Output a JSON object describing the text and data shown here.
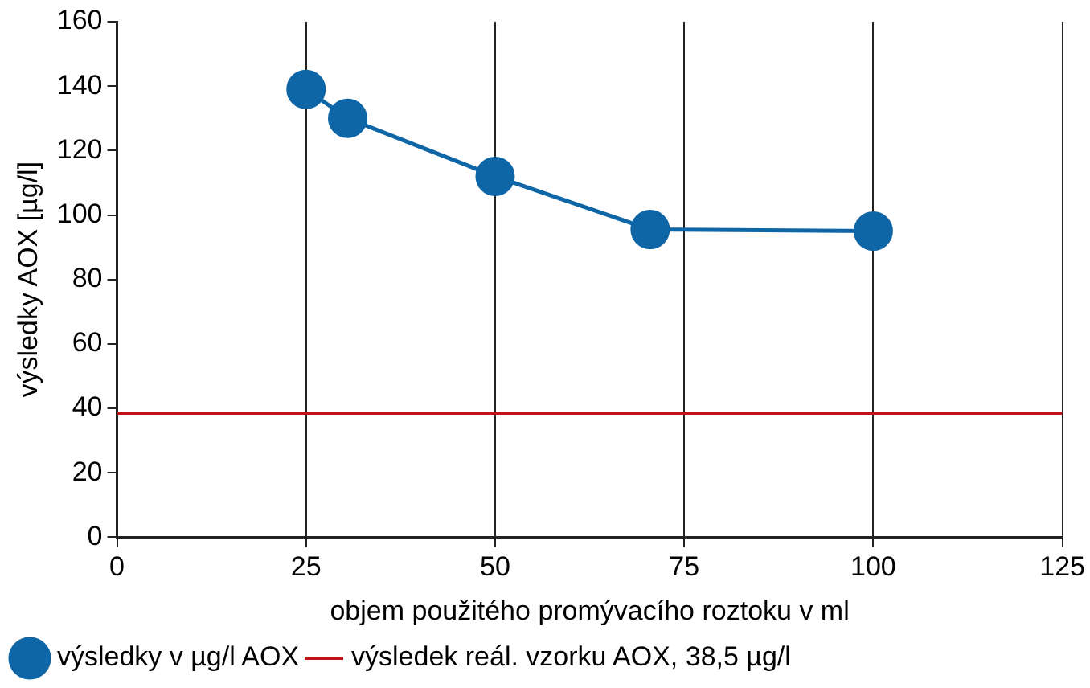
{
  "chart_data": {
    "type": "line",
    "xlabel": "objem použitého promývacího roztoku v ml",
    "ylabel": "výsledky AOX [µg/l]",
    "x": [
      25,
      30.5,
      50,
      70.5,
      100
    ],
    "series": [
      {
        "name": "výsledky v µg/l AOX",
        "color": "#0f66a6",
        "values": [
          139,
          130,
          112,
          95.5,
          95
        ]
      }
    ],
    "ref_lines": [
      {
        "axis": "y",
        "value": 38.5,
        "label": "výsledek reál. vzorku AOX, 38,5 µg/l",
        "color": "#c1121c"
      }
    ],
    "xlim": [
      0,
      125
    ],
    "xticks": [
      0,
      25,
      50,
      75,
      100,
      125
    ],
    "ylim": [
      0,
      160
    ],
    "yticks": [
      0,
      20,
      40,
      60,
      80,
      100,
      120,
      140,
      160
    ],
    "grid": "x",
    "legend": "bottom",
    "marker": "circle",
    "line_style": "solid"
  }
}
